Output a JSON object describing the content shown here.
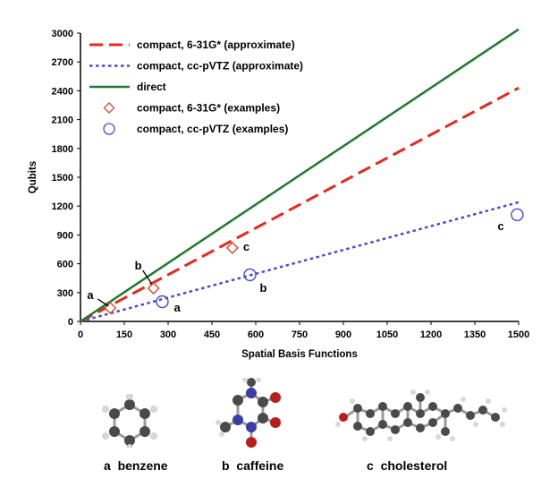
{
  "chart_data": {
    "type": "scatter",
    "xlabel": "Spatial Basis Functions",
    "ylabel": "Qubits",
    "xlim": [
      0,
      1500
    ],
    "ylim": [
      0,
      3000
    ],
    "xticks": [
      0,
      150,
      300,
      450,
      600,
      750,
      900,
      1050,
      1200,
      1350,
      1500
    ],
    "yticks": [
      0,
      300,
      600,
      900,
      1200,
      1500,
      1800,
      2100,
      2400,
      2700,
      3000
    ],
    "grid": false,
    "legend_position": "top-left",
    "lines": [
      {
        "name": "compact, 6-31G*  (approximate)",
        "style": "dashed",
        "color": "#e8281e",
        "x": [
          0,
          1500
        ],
        "y": [
          0,
          2430
        ]
      },
      {
        "name": "compact, cc-pVTZ (approximate)",
        "style": "dotted",
        "color": "#4a4ad0",
        "x": [
          0,
          1500
        ],
        "y": [
          0,
          1240
        ]
      },
      {
        "name": "direct",
        "style": "solid",
        "color": "#1f7a2a",
        "x": [
          0,
          1500
        ],
        "y": [
          0,
          3040
        ]
      }
    ],
    "series": [
      {
        "name": "compact, 6-31G*  (examples)",
        "marker": "diamond",
        "color": "#d04a36",
        "points": [
          {
            "x": 102,
            "y": 140,
            "label": "a"
          },
          {
            "x": 250,
            "y": 345,
            "label": "b"
          },
          {
            "x": 520,
            "y": 765,
            "label": "c"
          }
        ]
      },
      {
        "name": "compact, cc-pVTZ (examples)",
        "marker": "circle",
        "color": "#4a4ad0",
        "points": [
          {
            "x": 280,
            "y": 205,
            "label": "a"
          },
          {
            "x": 580,
            "y": 485,
            "label": "b"
          },
          {
            "x": 1495,
            "y": 1110,
            "label": "c"
          }
        ]
      }
    ]
  },
  "captions": [
    {
      "letter": "a",
      "name": "benzene"
    },
    {
      "letter": "b",
      "name": "caffeine"
    },
    {
      "letter": "c",
      "name": "cholesterol"
    }
  ]
}
